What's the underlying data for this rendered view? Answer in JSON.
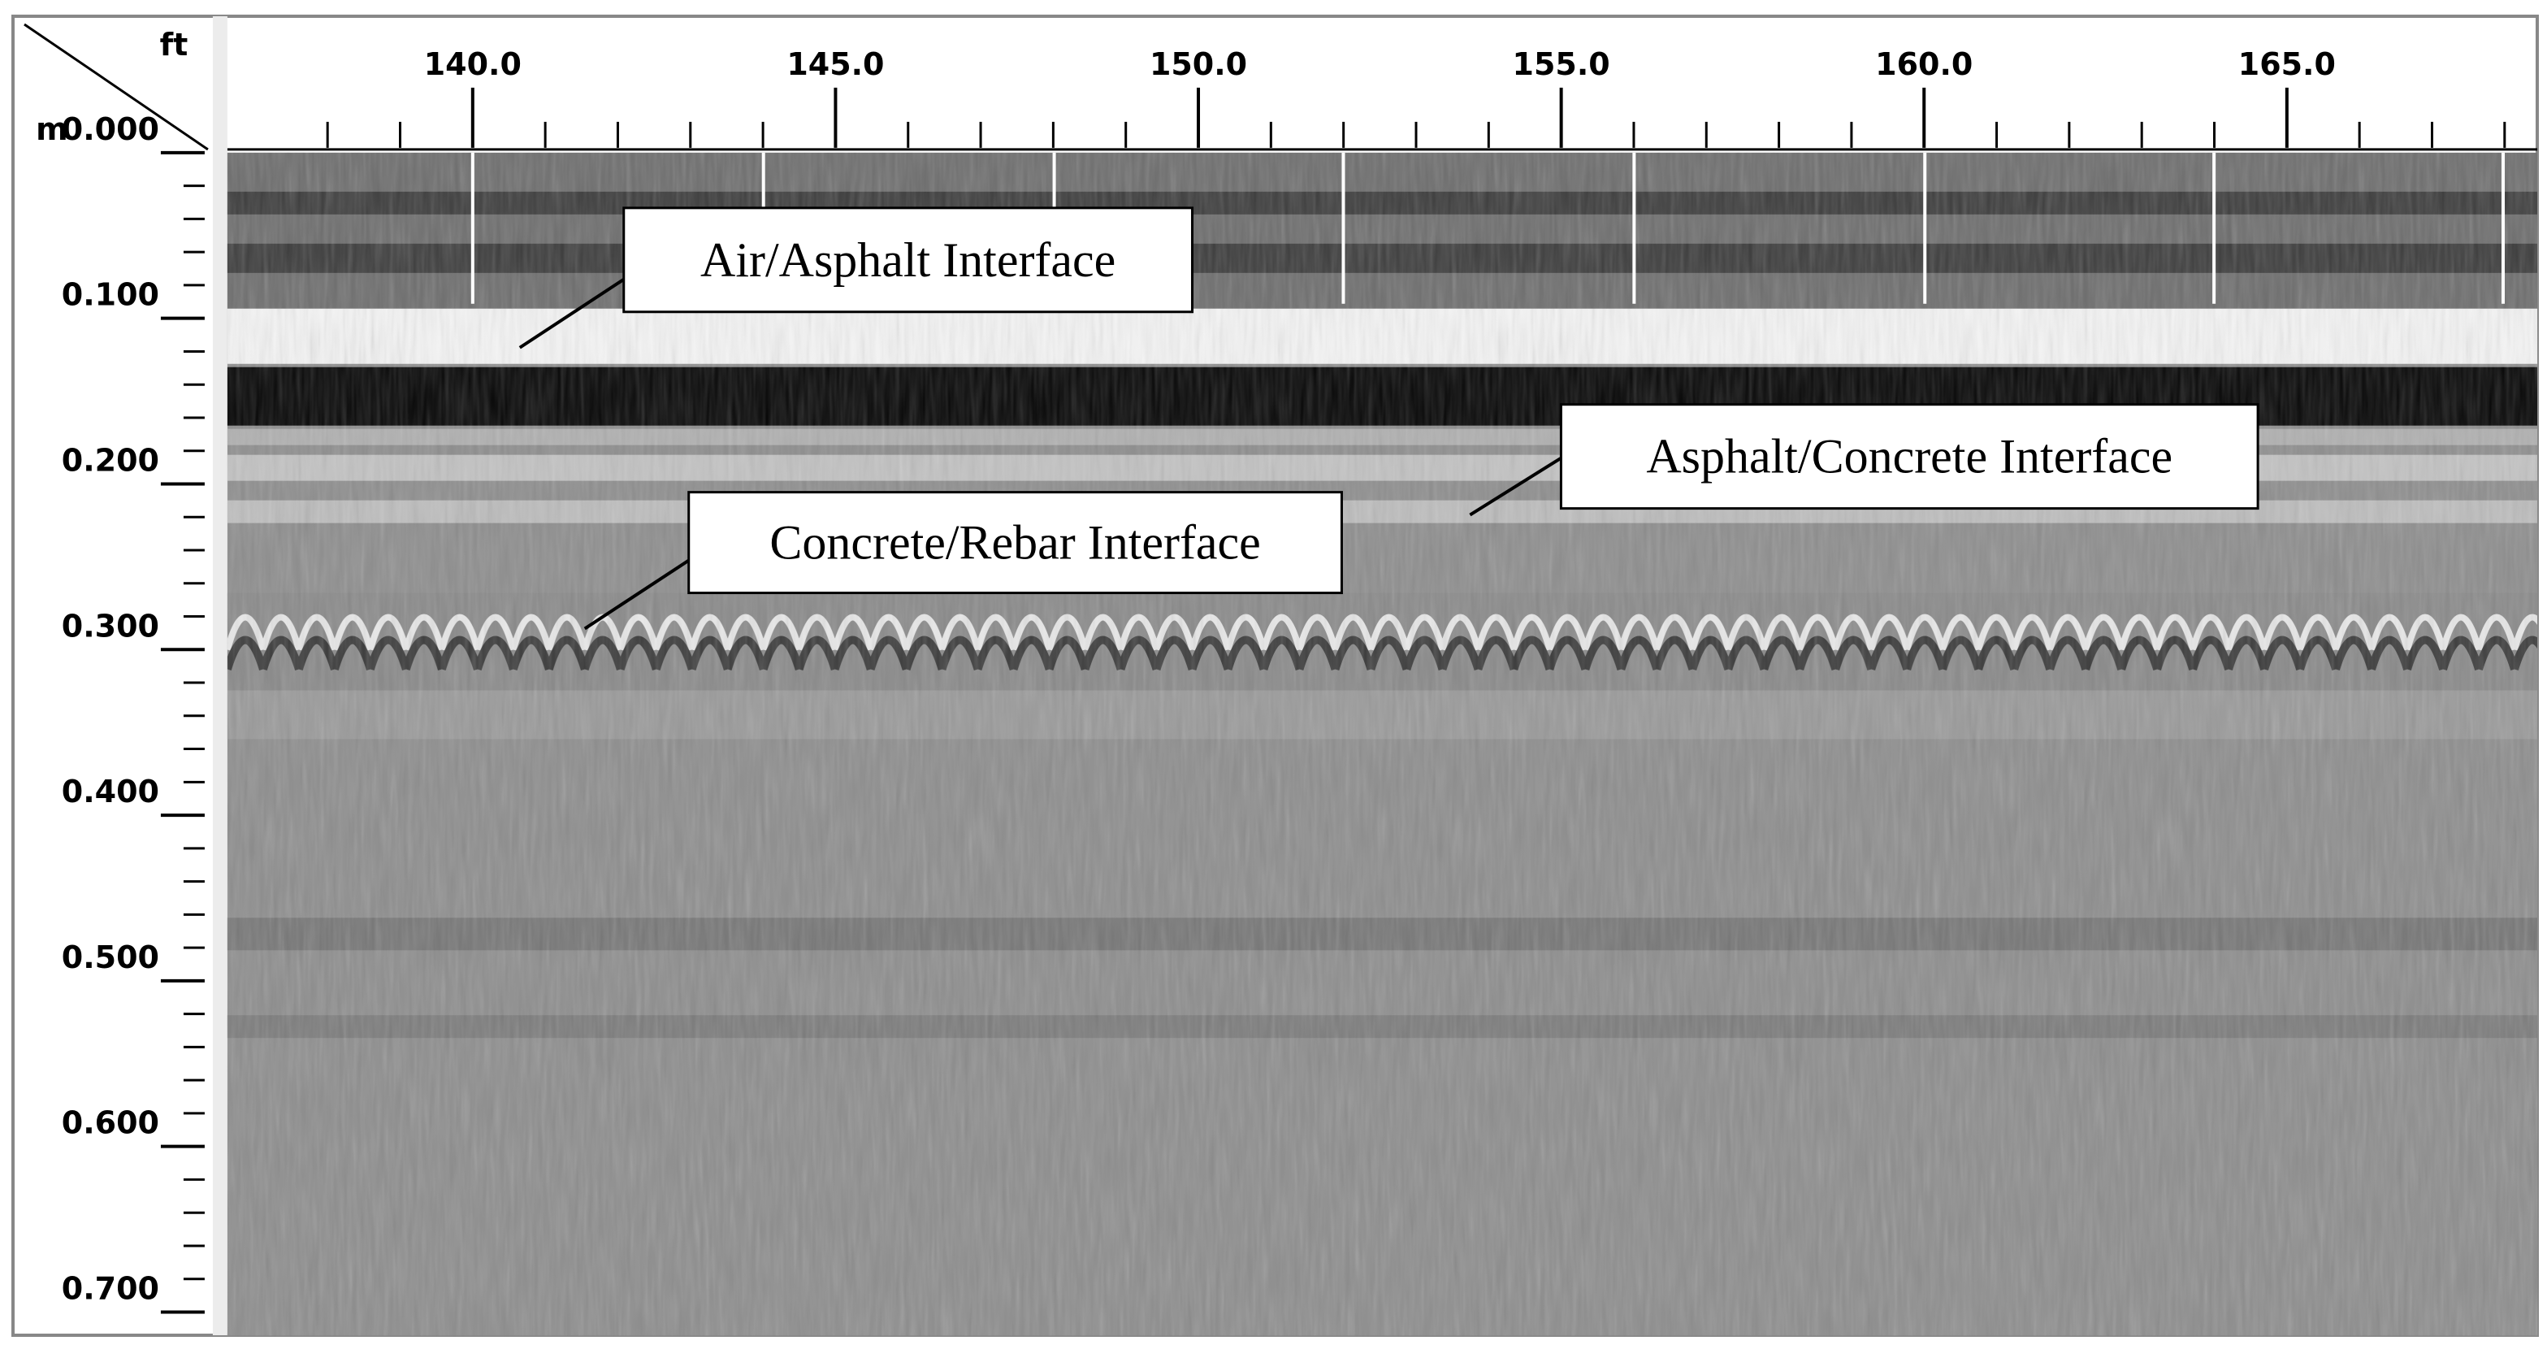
{
  "chart_data": {
    "type": "radargram",
    "x_unit": "ft",
    "y_unit": "m",
    "xlim": [
      136.62,
      168.45
    ],
    "xticks": [
      {
        "value": 140,
        "label": "140.0"
      },
      {
        "value": 145,
        "label": "145.0"
      },
      {
        "value": 150,
        "label": "150.0"
      },
      {
        "value": 155,
        "label": "155.0"
      },
      {
        "value": 160,
        "label": "160.0"
      },
      {
        "value": 165,
        "label": "165.0"
      }
    ],
    "xminorticks": [
      138,
      139,
      141,
      142,
      143,
      144,
      146,
      147,
      148,
      149,
      151,
      152,
      153,
      154,
      156,
      157,
      158,
      159,
      161,
      162,
      163,
      164,
      166,
      167,
      168
    ],
    "ylim": [
      0,
      0.714
    ],
    "yticks": [
      {
        "value": 0,
        "label": "0.000"
      },
      {
        "value": 0.1,
        "label": "0.100"
      },
      {
        "value": 0.2,
        "label": "0.200"
      },
      {
        "value": 0.3,
        "label": "0.300"
      },
      {
        "value": 0.4,
        "label": "0.400"
      },
      {
        "value": 0.5,
        "label": "0.500"
      },
      {
        "value": 0.6,
        "label": "0.600"
      },
      {
        "value": 0.7,
        "label": "0.700"
      }
    ],
    "yminorticks": [
      0.02,
      0.04,
      0.06,
      0.08,
      0.12,
      0.14,
      0.16,
      0.18,
      0.22,
      0.24,
      0.26,
      0.28,
      0.32,
      0.34,
      0.36,
      0.38,
      0.42,
      0.44,
      0.46,
      0.48,
      0.52,
      0.54,
      0.56,
      0.58,
      0.62,
      0.64,
      0.66,
      0.68
    ],
    "annotations": [
      "Air/Asphalt Interface",
      "Asphalt/Concrete Interface",
      "Concrete/Rebar Interface"
    ]
  }
}
